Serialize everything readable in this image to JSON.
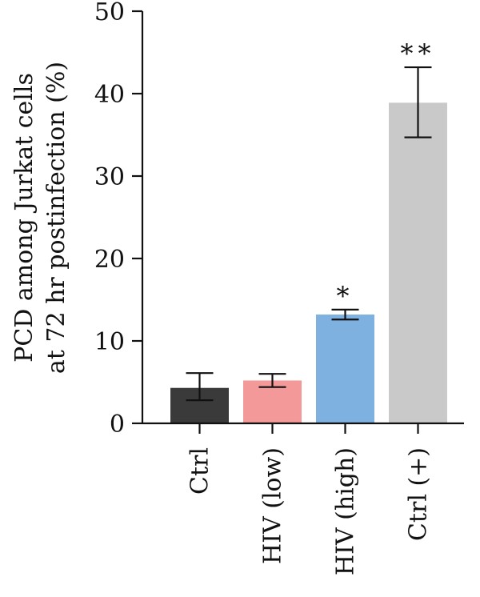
{
  "chart_data": {
    "type": "bar",
    "title": "",
    "ylabel_lines": [
      "PCD among Jurkat cells",
      "at 72 hr postinfection (%)"
    ],
    "xlabel": "",
    "categories": [
      "Ctrl",
      "HIV (low)",
      "HIV (high)",
      "Ctrl (+)"
    ],
    "values": [
      4.3,
      5.2,
      13.2,
      38.9
    ],
    "error_low": [
      2.8,
      4.4,
      12.6,
      34.7
    ],
    "error_high": [
      6.1,
      6.0,
      13.8,
      43.2
    ],
    "significance": [
      "",
      "",
      "*",
      "**"
    ],
    "colors": [
      "#3a3a3a",
      "#f4999a",
      "#7fb1e0",
      "#c9c9c9"
    ],
    "ylim": [
      0,
      50
    ],
    "yticks": [
      "0",
      "10",
      "20",
      "30",
      "40",
      "50"
    ],
    "grid": false
  }
}
